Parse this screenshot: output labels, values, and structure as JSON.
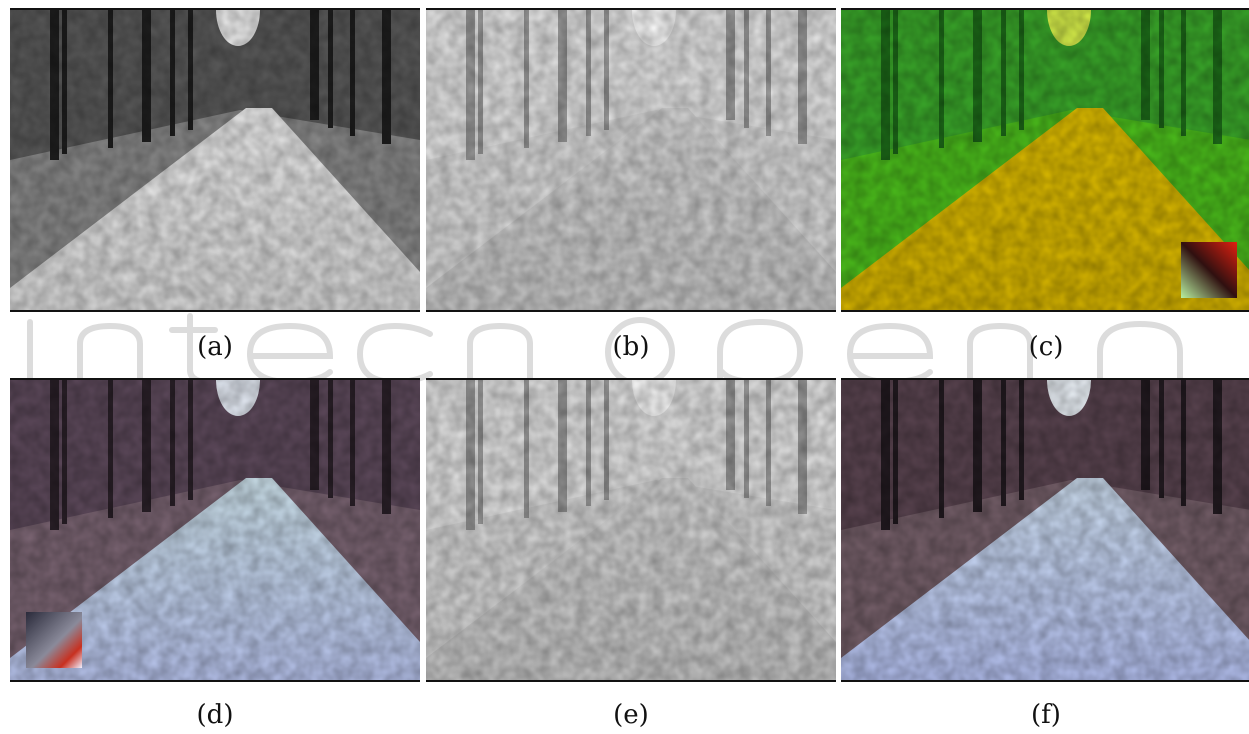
{
  "panels": [
    {
      "id": "a",
      "caption": "(a)",
      "scene": "grayscale forest road",
      "colors": {
        "sky": "#f2f2f2",
        "trees": "#5a5a5a",
        "trunks": "#1e1e1e",
        "ground": "#8a8a8a",
        "road": "#d9d9d9",
        "roadFar": "#eeeeee"
      }
    },
    {
      "id": "b",
      "caption": "(b)",
      "scene": "light gray channel of forest road",
      "colors": {
        "sky": "#ffffff",
        "trees": "#e6e6e6",
        "trunks": "#9a9a9a",
        "ground": "#dcdcdc",
        "road": "#c8c8c8",
        "roadFar": "#d8d8d8"
      }
    },
    {
      "id": "c",
      "caption": "(c)",
      "scene": "green and yellow pseudocolor of forest road",
      "colors": {
        "sky": "#d8f04a",
        "trees": "#3aa82a",
        "trunks": "#1c6a18",
        "ground": "#4cbf1c",
        "road": "#d6b400",
        "roadFar": "#e2c000"
      },
      "inset": "red-green color square, bottom right"
    },
    {
      "id": "d",
      "caption": "(d)",
      "scene": "purple-tinted color forest road",
      "colors": {
        "sky": "#e8eef8",
        "trees": "#5e4a5c",
        "trunks": "#2a2028",
        "ground": "#7a6472",
        "road": "#b8c4ee",
        "roadFar": "#cfe4ee"
      },
      "inset": "gray-red color square, bottom left"
    },
    {
      "id": "e",
      "caption": "(e)",
      "scene": "light gray channel of forest road",
      "colors": {
        "sky": "#ffffff",
        "trees": "#e4e4e4",
        "trunks": "#9a9a9a",
        "ground": "#d8d8d8",
        "road": "#c6c6c6",
        "roadFar": "#d6d6d6"
      }
    },
    {
      "id": "f",
      "caption": "(f)",
      "scene": "reconstructed color forest road",
      "colors": {
        "sky": "#eef4fa",
        "trees": "#5a4450",
        "trunks": "#221a20",
        "ground": "#76606a",
        "road": "#b4c0f0",
        "roadFar": "#cfe0f2"
      }
    },
    {
      "id": "watermark",
      "caption": "",
      "scene": "",
      "colors": {
        "stroke": "#d9d9d9"
      }
    }
  ]
}
